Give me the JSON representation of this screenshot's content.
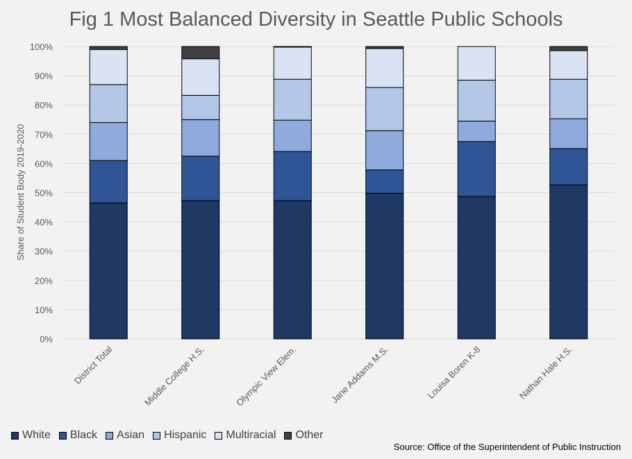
{
  "chart_data": {
    "type": "bar",
    "stacked": true,
    "title": "Fig 1 Most Balanced Diversity in Seattle Public Schools",
    "ylabel": "Share of Student Body 2019-2020",
    "xlabel": "",
    "ylim": [
      0,
      100
    ],
    "ytick_labels": [
      "0%",
      "10%",
      "20%",
      "30%",
      "40%",
      "50%",
      "60%",
      "70%",
      "80%",
      "90%",
      "100%"
    ],
    "categories": [
      "District Total",
      "Middle College H.S.",
      "Olympic View Elem.",
      "Jane Addams M.S.",
      "Louisa Boren K-8",
      "Nathan Hale H.S."
    ],
    "series": [
      {
        "name": "White",
        "color": "#203864",
        "values": [
          46.5,
          47.3,
          47.3,
          49.8,
          48.7,
          52.7
        ]
      },
      {
        "name": "Black",
        "color": "#2f5597",
        "values": [
          14.5,
          15.2,
          16.8,
          8.0,
          18.8,
          12.4
        ]
      },
      {
        "name": "Asian",
        "color": "#8faadc",
        "values": [
          13.0,
          12.5,
          10.7,
          13.4,
          7.0,
          10.2
        ]
      },
      {
        "name": "Hispanic",
        "color": "#b4c7e7",
        "values": [
          13.0,
          8.3,
          14.0,
          14.8,
          14.0,
          13.5
        ]
      },
      {
        "name": "Multiracial",
        "color": "#dae3f3",
        "values": [
          12.0,
          12.5,
          11.0,
          13.3,
          11.5,
          9.8
        ]
      },
      {
        "name": "Other",
        "color": "#404040",
        "values": [
          1.0,
          4.2,
          0.2,
          0.7,
          0.0,
          1.4
        ]
      }
    ],
    "legend_position": "bottom-left",
    "grid": true,
    "source": "Source: Office of the Superintendent of Public Instruction"
  }
}
